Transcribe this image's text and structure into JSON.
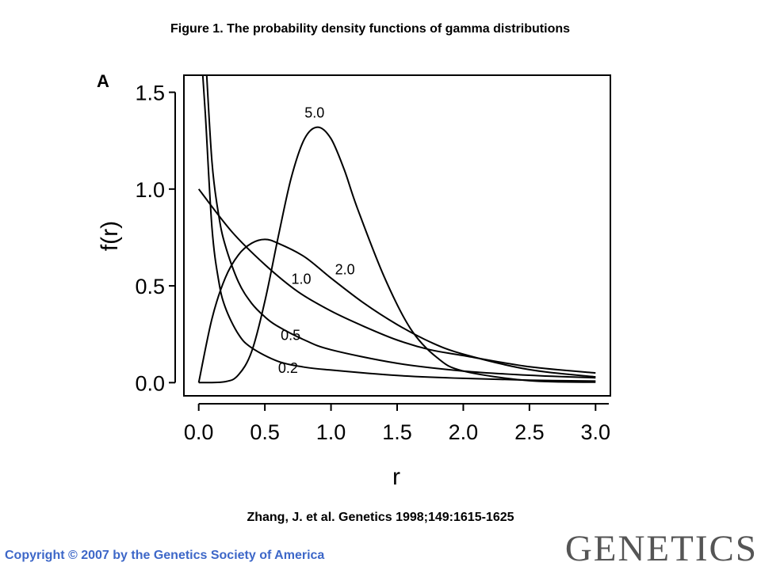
{
  "title": "Figure 1. The probability density functions of gamma distributions",
  "citation": "Zhang, J. et al. Genetics 1998;149:1615-1625",
  "copyright": "Copyright © 2007 by the Genetics Society of America",
  "journal_logo": "GENETICS",
  "colors": {
    "copyright_text": "#3d67c8",
    "journal_logo": "#555555",
    "curves": "#000000"
  },
  "chart_data": {
    "type": "line",
    "panel_label": "A",
    "xlabel": "r",
    "ylabel": "f(r)",
    "xlim": [
      -0.1,
      3.1
    ],
    "ylim": [
      -0.06,
      1.58
    ],
    "x_ticks": [
      0.0,
      0.5,
      1.0,
      1.5,
      2.0,
      2.5,
      3.0
    ],
    "x_tick_labels": [
      "0.0",
      "0.5",
      "1.0",
      "1.5",
      "2.0",
      "2.5",
      "3.0"
    ],
    "y_ticks": [
      0.0,
      0.5,
      1.0,
      1.5
    ],
    "y_tick_labels": [
      "0.0",
      "0.5",
      "1.0",
      "1.5"
    ],
    "grid": false,
    "series": [
      {
        "name": "0.2",
        "x": [
          0.02,
          0.05,
          0.1,
          0.15,
          0.2,
          0.3,
          0.4,
          0.6,
          0.8,
          1.0,
          1.5,
          2.0,
          2.5,
          3.0
        ],
        "y": [
          1.7,
          1.39,
          0.8,
          0.53,
          0.39,
          0.25,
          0.18,
          0.11,
          0.08,
          0.065,
          0.037,
          0.022,
          0.013,
          0.008
        ]
      },
      {
        "name": "0.5",
        "x": [
          0.05,
          0.1,
          0.15,
          0.2,
          0.3,
          0.4,
          0.5,
          0.6,
          0.8,
          1.0,
          1.5,
          2.0,
          2.5,
          3.0
        ],
        "y": [
          1.72,
          1.14,
          0.87,
          0.71,
          0.52,
          0.41,
          0.34,
          0.29,
          0.22,
          0.17,
          0.1,
          0.06,
          0.038,
          0.025
        ]
      },
      {
        "name": "1.0",
        "x": [
          0.0,
          0.25,
          0.5,
          0.75,
          1.0,
          1.25,
          1.5,
          1.75,
          2.0,
          2.5,
          3.0
        ],
        "y": [
          1.0,
          0.78,
          0.61,
          0.47,
          0.37,
          0.29,
          0.22,
          0.17,
          0.14,
          0.082,
          0.05
        ]
      },
      {
        "name": "2.0",
        "x": [
          0.0,
          0.1,
          0.2,
          0.3,
          0.4,
          0.5,
          0.6,
          0.8,
          1.0,
          1.25,
          1.5,
          1.75,
          2.0,
          2.5,
          3.0
        ],
        "y": [
          0.0,
          0.33,
          0.54,
          0.66,
          0.72,
          0.74,
          0.72,
          0.65,
          0.54,
          0.41,
          0.3,
          0.21,
          0.147,
          0.067,
          0.03
        ]
      },
      {
        "name": "5.0",
        "x": [
          0.0,
          0.2,
          0.3,
          0.4,
          0.5,
          0.6,
          0.7,
          0.8,
          0.9,
          1.0,
          1.1,
          1.2,
          1.4,
          1.6,
          1.8,
          2.0,
          2.5,
          3.0
        ],
        "y": [
          0.0,
          0.005,
          0.04,
          0.16,
          0.42,
          0.75,
          1.06,
          1.26,
          1.32,
          1.26,
          1.1,
          0.9,
          0.55,
          0.28,
          0.13,
          0.06,
          0.01,
          0.002
        ]
      }
    ]
  }
}
